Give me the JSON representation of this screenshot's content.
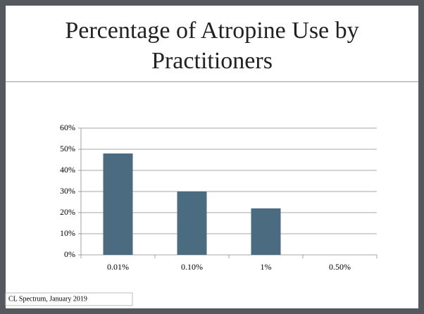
{
  "chart_data": {
    "type": "bar",
    "title_lines": [
      "Percentage of Atropine Use by",
      "Practitioners"
    ],
    "categories": [
      "0.01%",
      "0.10%",
      "1%",
      "0.50%"
    ],
    "values": [
      48,
      30,
      22,
      0
    ],
    "color": "#4b6b80",
    "ylim": [
      0,
      60
    ],
    "yticks": [
      {
        "value": 0,
        "label": "0%"
      },
      {
        "value": 10,
        "label": "10%"
      },
      {
        "value": 20,
        "label": "20%"
      },
      {
        "value": 30,
        "label": "30%"
      },
      {
        "value": 40,
        "label": "40%"
      },
      {
        "value": 50,
        "label": "50%"
      },
      {
        "value": 60,
        "label": "60%"
      }
    ],
    "grid": true,
    "source": "CL Spectrum, January 2019"
  }
}
